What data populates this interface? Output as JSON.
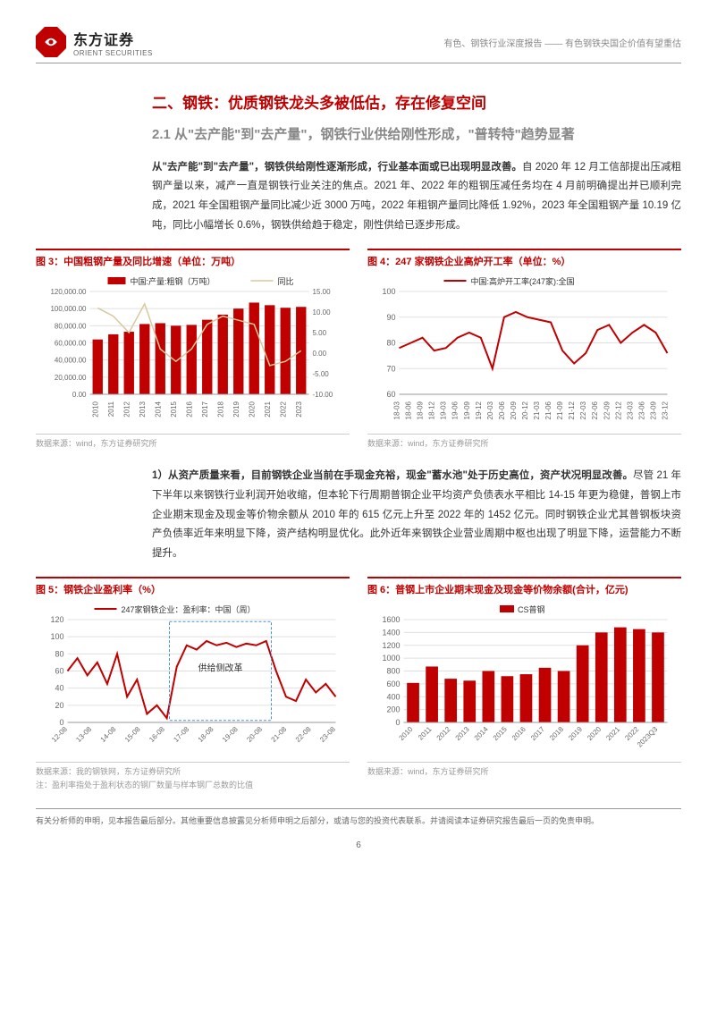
{
  "header": {
    "logo_cn": "东方证券",
    "logo_en": "ORIENT SECURITIES",
    "right_text": "有色、钢铁行业深度报告 —— 有色钢铁央国企价值有望重估"
  },
  "section": {
    "title": "二、钢铁：优质钢铁龙头多被低估，存在修复空间",
    "subtitle": "2.1 从\"去产能\"到\"去产量\"，钢铁行业供给刚性形成，\"普转特\"趋势显著"
  },
  "para1": {
    "bold": "从\"去产能\"到\"去产量\"，钢铁供给刚性逐渐形成，行业基本面或已出现明显改善。",
    "text": "自 2020 年 12 月工信部提出压减粗钢产量以来，减产一直是钢铁行业关注的焦点。2021 年、2022 年的粗钢压减任务均在 4 月前明确提出并已顺利完成，2021 年全国粗钢产量同比减少近 3000 万吨，2022 年粗钢产量同比降低 1.92%，2023 年全国粗钢产量 10.19 亿吨，同比小幅增长 0.6%，钢铁供给趋于稳定，刚性供给已逐步形成。"
  },
  "para2": {
    "bold": "1）从资产质量来看，目前钢铁企业当前在手现金充裕，现金\"蓄水池\"处于历史高位，资产状况明显改善。",
    "text": "尽管 21 年下半年以来钢铁行业利润开始收缩，但本轮下行周期普钢企业平均资产负债表水平相比 14-15 年更为稳健，普钢上市企业期末现金及现金等价物余额从 2010 年的 615 亿元上升至 2022 年的 1452 亿元。同时钢铁企业尤其普钢板块资产负债率近年来明显下降，资产结构明显优化。此外近年来钢铁企业营业周期中枢也出现了明显下降，运营能力不断提升。"
  },
  "chart3": {
    "title": "图 3：中国粗钢产量及同比增速（单位：万吨）",
    "type": "bar+line",
    "legend1": "中国:产量:粗钢（万吨）",
    "legend2": "同比",
    "x_labels": [
      "2010",
      "2011",
      "2012",
      "2013",
      "2014",
      "2015",
      "2016",
      "2017",
      "2018",
      "2019",
      "2020",
      "2021",
      "2022",
      "2023"
    ],
    "bar_values": [
      64000,
      70000,
      73000,
      82000,
      83000,
      80000,
      81000,
      87000,
      93000,
      100000,
      107000,
      104000,
      101000,
      102000
    ],
    "line_values": [
      11,
      9,
      5,
      12,
      1,
      -2,
      1,
      7,
      9,
      8,
      7,
      -3,
      -2,
      0.6
    ],
    "y1_min": 0,
    "y1_max": 120000,
    "y1_step": 20000,
    "y2_min": -10,
    "y2_max": 15,
    "y2_step": 5,
    "bar_color": "#c00000",
    "line_color": "#d9c89a",
    "grid_color": "#e0e0e0",
    "source": "数据来源：wind，东方证券研究所"
  },
  "chart4": {
    "title": "图 4：247 家钢铁企业高炉开工率（单位：%）",
    "type": "line",
    "legend1": "中国:高炉开工率(247家):全国",
    "x_labels": [
      "18-03",
      "18-06",
      "18-09",
      "18-12",
      "19-03",
      "19-06",
      "19-09",
      "19-12",
      "20-03",
      "20-06",
      "20-09",
      "20-12",
      "21-03",
      "21-06",
      "21-09",
      "21-12",
      "22-03",
      "22-06",
      "22-09",
      "22-12",
      "23-03",
      "23-06",
      "23-09",
      "23-12"
    ],
    "values": [
      78,
      80,
      82,
      77,
      78,
      82,
      84,
      82,
      70,
      90,
      92,
      90,
      89,
      88,
      77,
      72,
      76,
      85,
      87,
      80,
      84,
      87,
      84,
      76
    ],
    "y_min": 60,
    "y_max": 100,
    "y_step": 10,
    "line_color": "#c00000",
    "grid_color": "#e0e0e0",
    "source": "数据来源：wind，东方证券研究所"
  },
  "chart5": {
    "title": "图 5：钢铁企业盈利率（%）",
    "type": "line",
    "legend1": "247家钢铁企业：盈利率：中国（周）",
    "annotation": "供给侧改革",
    "x_labels": [
      "12-08",
      "13-08",
      "14-08",
      "15-08",
      "16-08",
      "17-08",
      "18-08",
      "19-08",
      "20-08",
      "21-08",
      "22-08",
      "23-08"
    ],
    "values_path": "M0,60 L5,75 L10,55 L15,70 L20,45 L25,80 L30,30 L35,50 L38,10 L42,20 L45,5 L50,65 L55,90 L60,85 L65,95 L70,90 L75,93 L80,88 L85,92 L90,90 L93,95 L96,60 L100,30 L105,25 L110,50 L115,35 L120,45 L125,30",
    "y_min": 0,
    "y_max": 120,
    "y_step": 20,
    "line_color": "#c00000",
    "box_color": "#4a90d9",
    "grid_color": "#e0e0e0",
    "source": "数据来源：我的钢铁网，东方证券研究所",
    "note": "注：盈利率指处于盈利状态的钢厂数量与样本钢厂总数的比值"
  },
  "chart6": {
    "title": "图 6：普钢上市企业期末现金及现金等价物余额(合计，亿元)",
    "type": "bar",
    "legend1": "CS普钢",
    "x_labels": [
      "2010",
      "2011",
      "2012",
      "2013",
      "2014",
      "2015",
      "2016",
      "2017",
      "2018",
      "2019",
      "2020",
      "2021",
      "2022",
      "2023Q3"
    ],
    "values": [
      615,
      870,
      680,
      650,
      800,
      720,
      750,
      850,
      800,
      1200,
      1400,
      1480,
      1452,
      1400
    ],
    "y_min": 0,
    "y_max": 1600,
    "y_step": 200,
    "bar_color": "#c00000",
    "grid_color": "#e0e0e0",
    "source": "数据来源：wind，东方证券研究所"
  },
  "footer": {
    "text": "有关分析师的申明，见本报告最后部分。其他重要信息披露见分析师申明之后部分，或请与您的投资代表联系。并请阅读本证券研究报告最后一页的免责申明。",
    "page": "6"
  },
  "colors": {
    "accent": "#c00000",
    "gray": "#888888"
  }
}
